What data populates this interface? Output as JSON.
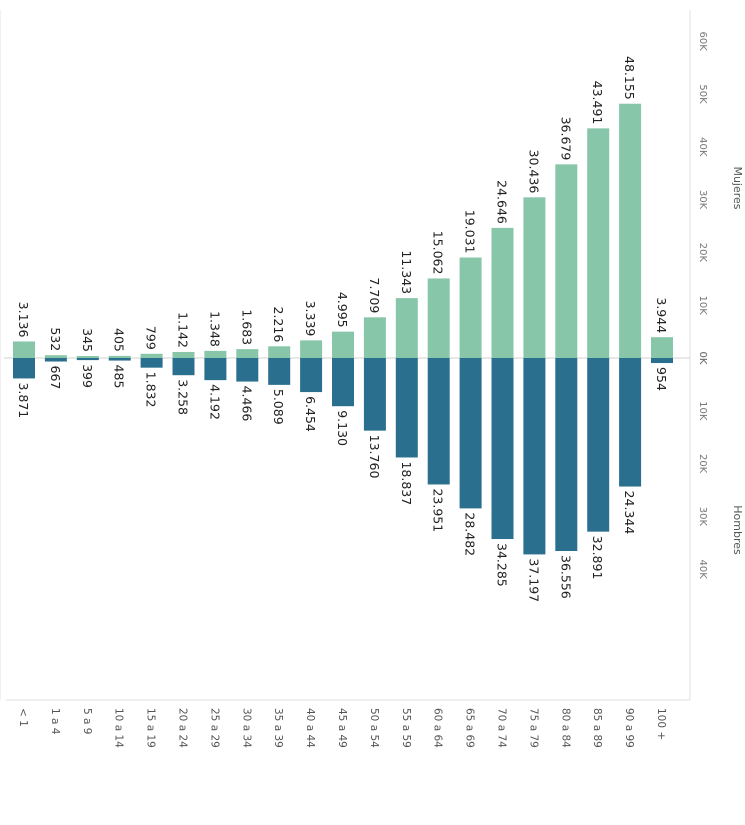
{
  "chart_data": {
    "type": "bar",
    "orientation": "rotated-90-clockwise",
    "title": "",
    "categories": [
      "< 1",
      "1 a 4",
      "5 a 9",
      "10 a 14",
      "15 a 19",
      "20 a 24",
      "25 a 29",
      "30 a 34",
      "35 a 39",
      "40 a 44",
      "45 a 49",
      "50 a 54",
      "55 a 59",
      "60 a 64",
      "65 a 69",
      "70 a 74",
      "75 a 79",
      "80 a 84",
      "85 a 89",
      "90 a 99",
      "100 +"
    ],
    "series": [
      {
        "name": "Mujeres",
        "color": "#88c6aa",
        "values": [
          3136,
          532,
          345,
          405,
          799,
          1142,
          1348,
          1683,
          2216,
          3339,
          4995,
          7709,
          11343,
          15062,
          19031,
          24646,
          30436,
          36679,
          43491,
          48155,
          3944
        ],
        "labels": [
          "3.136",
          "532",
          "345",
          "405",
          "799",
          "1.142",
          "1.348",
          "1.683",
          "2.216",
          "3.339",
          "4.995",
          "7.709",
          "11.343",
          "15.062",
          "19.031",
          "24.646",
          "30.436",
          "36.679",
          "43.491",
          "48.155",
          "3.944"
        ]
      },
      {
        "name": "Hombres",
        "color": "#2b6f8e",
        "values": [
          3871,
          667,
          399,
          485,
          1832,
          3258,
          4192,
          4466,
          5089,
          6454,
          9130,
          13760,
          18837,
          23951,
          28482,
          34285,
          37197,
          36556,
          32891,
          24344,
          954
        ],
        "labels": [
          "3.871",
          "667",
          "399",
          "485",
          "1.832",
          "3.258",
          "4.192",
          "4.466",
          "5.089",
          "6.454",
          "9.130",
          "13.760",
          "18.837",
          "23.951",
          "28.482",
          "34.285",
          "37.197",
          "36.556",
          "32.891",
          "24.344",
          "954"
        ]
      }
    ],
    "axes": {
      "mujeres": {
        "label": "Mujeres",
        "ticks": [
          "0K",
          "10K",
          "20K",
          "30K",
          "40K",
          "50K",
          "60K"
        ],
        "range": [
          0,
          60000
        ]
      },
      "hombres": {
        "label": "Hombres",
        "ticks": [
          "0K",
          "10K",
          "20K",
          "30K",
          "40K"
        ],
        "range": [
          0,
          40000
        ]
      }
    },
    "grid": false,
    "legend": "none"
  }
}
